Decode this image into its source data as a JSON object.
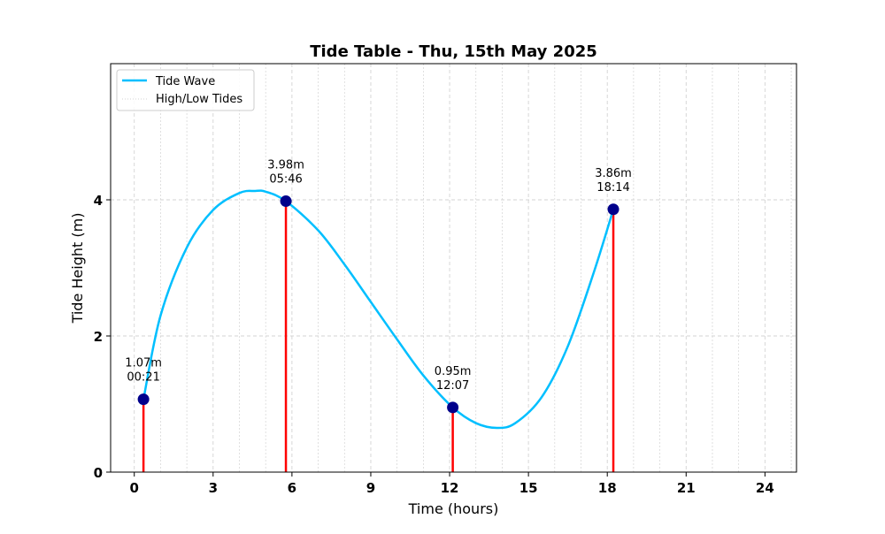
{
  "chart_data": {
    "type": "line",
    "title": "Tide Table - Thu, 15th May 2025",
    "xlabel": "Time (hours)",
    "ylabel": "Tide Height (m)",
    "xlim": [
      -0.9,
      25.2
    ],
    "ylim": [
      0,
      6
    ],
    "x_ticks": [
      0,
      3,
      6,
      9,
      12,
      15,
      18,
      21,
      24
    ],
    "y_ticks": [
      0,
      2,
      4
    ],
    "minor_x_grid_step": 1,
    "grid": true,
    "legend": {
      "placement": "top-left",
      "entries": [
        {
          "label": "Tide Wave",
          "style": "line",
          "color": "#00bfff"
        },
        {
          "label": "High/Low Tides",
          "style": "dotted",
          "color": "#d3d3d3"
        }
      ]
    },
    "series": [
      {
        "name": "Tide Wave",
        "color": "#00bfff",
        "x": [
          0.35,
          1.0,
          2.0,
          3.0,
          4.0,
          4.6,
          5.0,
          5.77,
          7.0,
          8.0,
          9.0,
          10.0,
          11.0,
          12.12,
          13.0,
          13.8,
          14.5,
          15.5,
          16.5,
          17.5,
          18.23
        ],
        "y": [
          1.07,
          2.3,
          3.3,
          3.85,
          4.1,
          4.13,
          4.12,
          3.98,
          3.55,
          3.05,
          2.5,
          1.95,
          1.42,
          0.95,
          0.72,
          0.65,
          0.72,
          1.1,
          1.85,
          2.95,
          3.86
        ]
      }
    ],
    "tides": [
      {
        "time": "00:21",
        "x": 0.35,
        "height": 1.07,
        "label": "1.07m"
      },
      {
        "time": "05:46",
        "x": 5.77,
        "height": 3.98,
        "label": "3.98m"
      },
      {
        "time": "12:07",
        "x": 12.12,
        "height": 0.95,
        "label": "0.95m"
      },
      {
        "time": "18:14",
        "x": 18.23,
        "height": 3.86,
        "label": "3.86m"
      }
    ],
    "colors": {
      "wave": "#00bfff",
      "stem": "#ff0000",
      "marker": "#00008b",
      "grid": "#d3d3d3"
    }
  }
}
